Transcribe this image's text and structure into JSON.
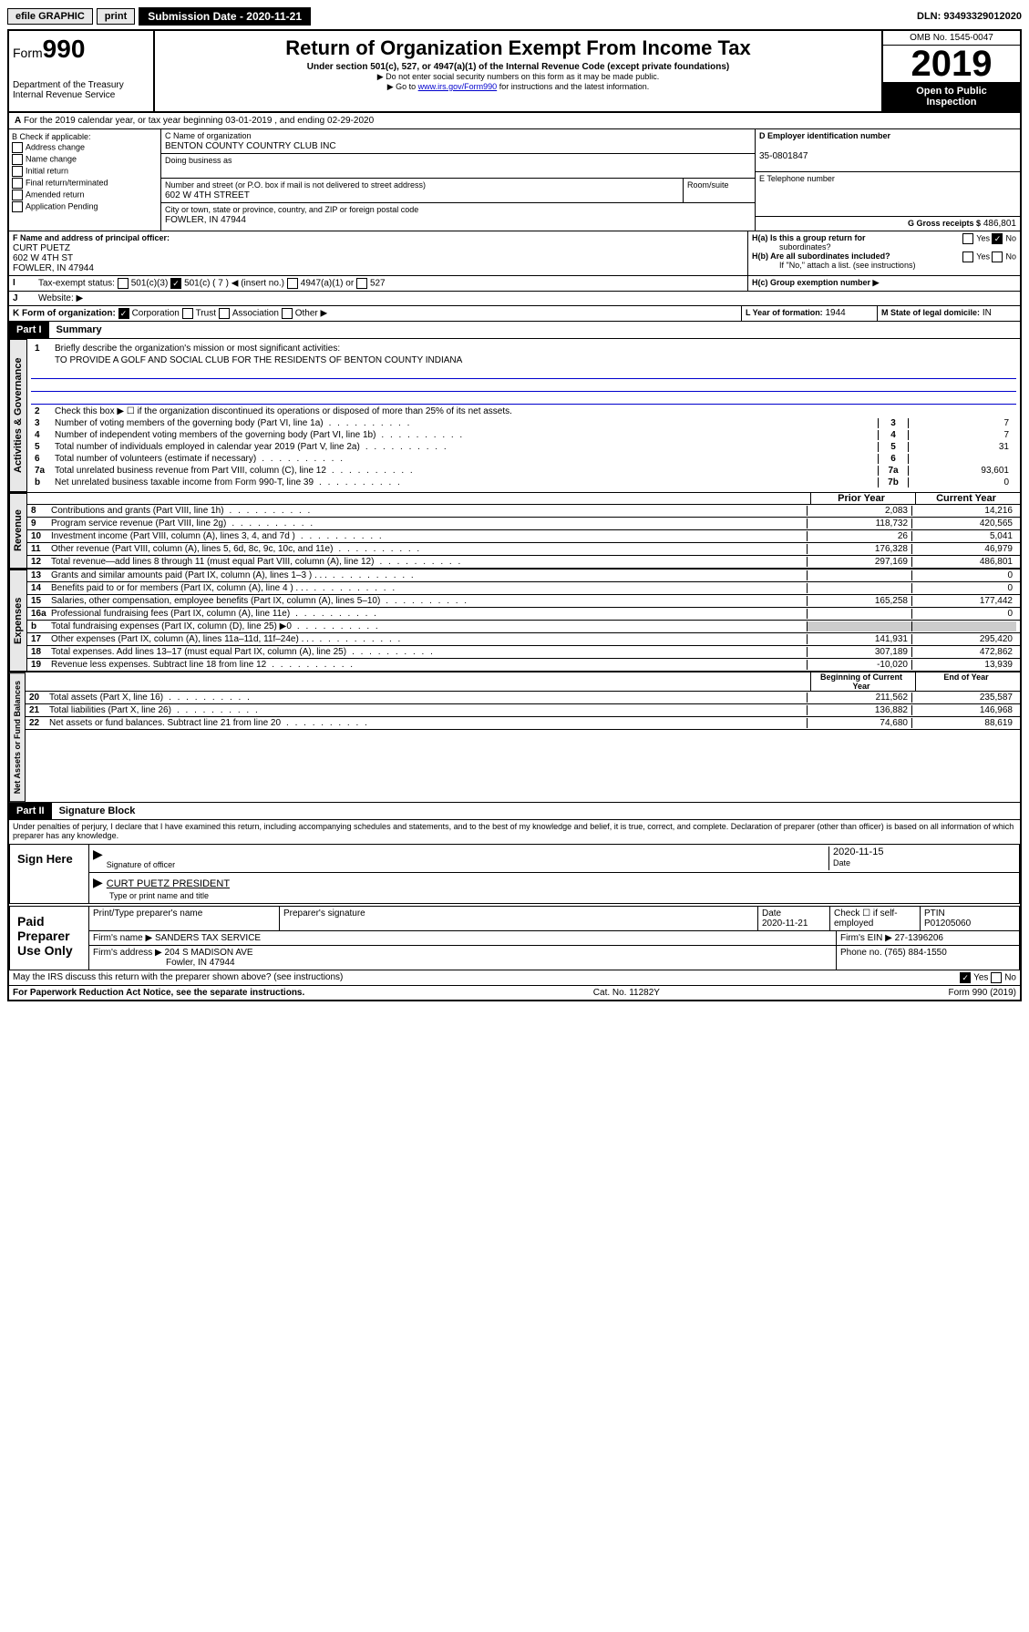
{
  "topbar": {
    "efile": "efile GRAPHIC",
    "print": "print",
    "subLabel": "Submission Date - 2020-11-21",
    "dln": "DLN: 93493329012020"
  },
  "header": {
    "form": "Form",
    "num": "990",
    "dept": "Department of the Treasury",
    "irs": "Internal Revenue Service",
    "title": "Return of Organization Exempt From Income Tax",
    "sub1": "Under section 501(c), 527, or 4947(a)(1) of the Internal Revenue Code (except private foundations)",
    "sub2": "▶ Do not enter social security numbers on this form as it may be made public.",
    "sub3a": "▶ Go to ",
    "sub3link": "www.irs.gov/Form990",
    "sub3b": " for instructions and the latest information.",
    "omb": "OMB No. 1545-0047",
    "year": "2019",
    "open": "Open to Public",
    "insp": "Inspection"
  },
  "period": {
    "a": "A",
    "text": "For the 2019 calendar year, or tax year beginning 03-01-2019   , and ending 02-29-2020"
  },
  "b": {
    "title": "B Check if applicable:",
    "o1": "Address change",
    "o2": "Name change",
    "o3": "Initial return",
    "o4": "Final return/terminated",
    "o5": "Amended return",
    "o6": "Application Pending"
  },
  "c": {
    "lbl": "C Name of organization",
    "name": "BENTON COUNTY COUNTRY CLUB INC",
    "dba": "Doing business as",
    "addrLbl": "Number and street (or P.O. box if mail is not delivered to street address)",
    "room": "Room/suite",
    "addr": "602 W 4TH STREET",
    "cityLbl": "City or town, state or province, country, and ZIP or foreign postal code",
    "city": "FOWLER, IN  47944"
  },
  "d": {
    "lbl": "D Employer identification number",
    "val": "35-0801847"
  },
  "e": {
    "lbl": "E Telephone number"
  },
  "g": {
    "lbl": "G Gross receipts $",
    "val": "486,801"
  },
  "f": {
    "lbl": "F  Name and address of principal officer:",
    "n": "CURT PUETZ",
    "a1": "602 W 4TH ST",
    "a2": "FOWLER, IN  47944"
  },
  "h": {
    "a": "H(a)  Is this a group return for",
    "a2": "subordinates?",
    "b": "H(b)  Are all subordinates included?",
    "b2": "If \"No,\" attach a list. (see instructions)",
    "c": "H(c)  Group exemption number ▶",
    "yes": "Yes",
    "no": "No"
  },
  "i": {
    "lbl": "Tax-exempt status:",
    "o1": "501(c)(3)",
    "o2": "501(c) ( 7 ) ◀ (insert no.)",
    "o3": "4947(a)(1) or",
    "o4": "527"
  },
  "j": {
    "lbl": "Website: ▶"
  },
  "k": {
    "lbl": "K Form of organization:",
    "o1": "Corporation",
    "o2": "Trust",
    "o3": "Association",
    "o4": "Other ▶"
  },
  "l": {
    "lbl": "L Year of formation:",
    "val": "1944"
  },
  "m": {
    "lbl": "M State of legal domicile:",
    "val": "IN"
  },
  "part1": {
    "hdr": "Part I",
    "title": "Summary"
  },
  "tabs": {
    "ag": "Activities & Governance",
    "rev": "Revenue",
    "exp": "Expenses",
    "na": "Net Assets or Fund Balances"
  },
  "s1": {
    "l1": "Briefly describe the organization's mission or most significant activities:",
    "mission": "TO PROVIDE A GOLF AND SOCIAL CLUB FOR THE RESIDENTS OF BENTON COUNTY INDIANA",
    "l2": "Check this box ▶ ☐  if the organization discontinued its operations or disposed of more than 25% of its net assets.",
    "l3": "Number of voting members of the governing body (Part VI, line 1a)",
    "v3": "7",
    "l4": "Number of independent voting members of the governing body (Part VI, line 1b)",
    "v4": "7",
    "l5": "Total number of individuals employed in calendar year 2019 (Part V, line 2a)",
    "v5": "31",
    "l6": "Total number of volunteers (estimate if necessary)",
    "v6": "",
    "l7a": "Total unrelated business revenue from Part VIII, column (C), line 12",
    "v7a": "93,601",
    "l7b": "Net unrelated business taxable income from Form 990-T, line 39",
    "v7b": "0"
  },
  "cols": {
    "py": "Prior Year",
    "cy": "Current Year",
    "bcy": "Beginning of Current Year",
    "eoy": "End of Year"
  },
  "rev": [
    {
      "n": "8",
      "t": "Contributions and grants (Part VIII, line 1h)",
      "p": "2,083",
      "c": "14,216"
    },
    {
      "n": "9",
      "t": "Program service revenue (Part VIII, line 2g)",
      "p": "118,732",
      "c": "420,565"
    },
    {
      "n": "10",
      "t": "Investment income (Part VIII, column (A), lines 3, 4, and 7d )",
      "p": "26",
      "c": "5,041"
    },
    {
      "n": "11",
      "t": "Other revenue (Part VIII, column (A), lines 5, 6d, 8c, 9c, 10c, and 11e)",
      "p": "176,328",
      "c": "46,979"
    },
    {
      "n": "12",
      "t": "Total revenue—add lines 8 through 11 (must equal Part VIII, column (A), line 12)",
      "p": "297,169",
      "c": "486,801"
    }
  ],
  "exp": [
    {
      "n": "13",
      "t": "Grants and similar amounts paid (Part IX, column (A), lines 1–3 )   .    .    .",
      "p": "",
      "c": "0"
    },
    {
      "n": "14",
      "t": "Benefits paid to or for members (Part IX, column (A), line 4 )   .    .    .",
      "p": "",
      "c": "0"
    },
    {
      "n": "15",
      "t": "Salaries, other compensation, employee benefits (Part IX, column (A), lines 5–10)",
      "p": "165,258",
      "c": "177,442"
    },
    {
      "n": "16a",
      "t": "Professional fundraising fees (Part IX, column (A), line 11e)",
      "p": "",
      "c": "0"
    },
    {
      "n": "b",
      "t": "Total fundraising expenses (Part IX, column (D), line 25) ▶0",
      "p": "",
      "c": "",
      "nb": true
    },
    {
      "n": "17",
      "t": "Other expenses (Part IX, column (A), lines 11a–11d, 11f–24e)   .    .    .",
      "p": "141,931",
      "c": "295,420"
    },
    {
      "n": "18",
      "t": "Total expenses. Add lines 13–17 (must equal Part IX, column (A), line 25)",
      "p": "307,189",
      "c": "472,862"
    },
    {
      "n": "19",
      "t": "Revenue less expenses. Subtract line 18 from line 12",
      "p": "-10,020",
      "c": "13,939"
    }
  ],
  "na": [
    {
      "n": "20",
      "t": "Total assets (Part X, line 16)",
      "p": "211,562",
      "c": "235,587"
    },
    {
      "n": "21",
      "t": "Total liabilities (Part X, line 26)",
      "p": "136,882",
      "c": "146,968"
    },
    {
      "n": "22",
      "t": "Net assets or fund balances. Subtract line 21 from line 20",
      "p": "74,680",
      "c": "88,619"
    }
  ],
  "part2": {
    "hdr": "Part II",
    "title": "Signature Block",
    "decl": "Under penalties of perjury, I declare that I have examined this return, including accompanying schedules and statements, and to the best of my knowledge and belief, it is true, correct, and complete. Declaration of preparer (other than officer) is based on all information of which preparer has any knowledge."
  },
  "sign": {
    "here": "Sign Here",
    "sigoff": "Signature of officer",
    "date": "2020-11-15",
    "dateLbl": "Date",
    "name": "CURT PUETZ  PRESIDENT",
    "nameLbl": "Type or print name and title"
  },
  "paid": {
    "title": "Paid Preparer Use Only",
    "h1": "Print/Type preparer's name",
    "h2": "Preparer's signature",
    "h3": "Date",
    "h4": "Check ☐ if self-employed",
    "h5": "PTIN",
    "date": "2020-11-21",
    "ptin": "P01205060",
    "fnLbl": "Firm's name   ▶",
    "fn": "SANDERS TAX SERVICE",
    "einLbl": "Firm's EIN ▶",
    "ein": "27-1396206",
    "faLbl": "Firm's address ▶",
    "fa1": "204 S MADISON AVE",
    "fa2": "Fowler, IN  47944",
    "phLbl": "Phone no.",
    "ph": "(765) 884-1550"
  },
  "footer": {
    "q": "May the IRS discuss this return with the preparer shown above? (see instructions)",
    "yes": "Yes",
    "no": "No",
    "pra": "For Paperwork Reduction Act Notice, see the separate instructions.",
    "cat": "Cat. No. 11282Y",
    "form": "Form 990 (2019)"
  }
}
